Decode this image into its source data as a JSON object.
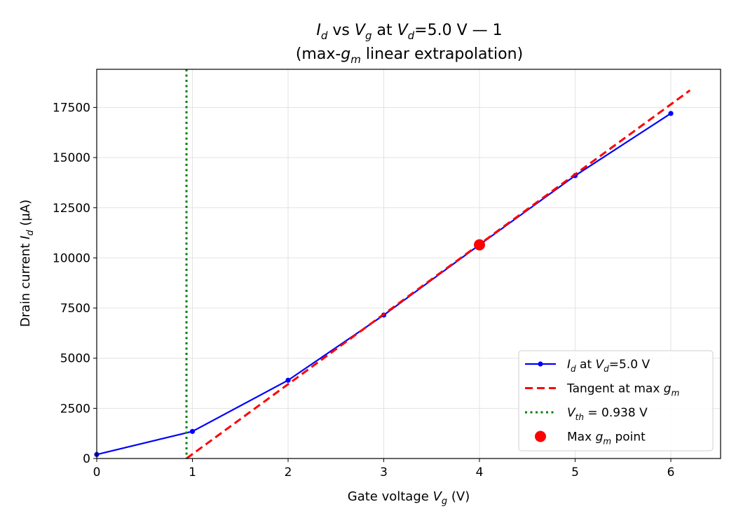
{
  "chart_data": {
    "type": "line",
    "title_line1": {
      "pre": "I",
      "sub1": "d",
      "mid": " vs ",
      "v": "V",
      "sub2": "g",
      "mid2": " at ",
      "v2": "V",
      "sub3": "d",
      "post": "=5.0 V — 1"
    },
    "title_line2": {
      "pre": "(max-",
      "g": "g",
      "sub": "m",
      "post": " linear extrapolation)"
    },
    "xlabel": {
      "pre": "Gate voltage ",
      "v": "V",
      "sub": "g",
      "post": " (V)"
    },
    "ylabel": {
      "pre": "Drain current ",
      "i": "I",
      "sub": "d",
      "post": " (µA)"
    },
    "xlim": [
      0,
      6.52
    ],
    "ylim": [
      0,
      19400
    ],
    "x_ticks": [
      0,
      1,
      2,
      3,
      4,
      5,
      6
    ],
    "x_tick_labels": [
      "0",
      "1",
      "2",
      "3",
      "4",
      "5",
      "6"
    ],
    "y_ticks": [
      0,
      2500,
      5000,
      7500,
      10000,
      12500,
      15000,
      17500
    ],
    "y_tick_labels": [
      "0",
      "2500",
      "5000",
      "7500",
      "10000",
      "12500",
      "15000",
      "17500"
    ],
    "grid": true,
    "legend_position": "lower-right",
    "series": [
      {
        "name": "I_d at V_d=5.0 V",
        "kind": "line-markers",
        "color": "#0000ff",
        "x": [
          0,
          1,
          2,
          3,
          4,
          5,
          6
        ],
        "y": [
          200,
          1350,
          3900,
          7150,
          10650,
          14100,
          17200
        ]
      },
      {
        "name": "Tangent at max g_m",
        "kind": "dashed",
        "color": "#ff0000",
        "x": [
          0.938,
          6.2
        ],
        "y": [
          0,
          18350
        ]
      },
      {
        "name": "V_th = 0.938 V",
        "kind": "dotted-vertical",
        "color": "#008000",
        "x": 0.938
      },
      {
        "name": "Max g_m point",
        "kind": "point",
        "color": "#ff0000",
        "x": [
          4
        ],
        "y": [
          10650
        ]
      }
    ],
    "legend": [
      {
        "kind": "line-markers",
        "color": "#0000ff",
        "parts": [
          [
            "I",
            "i"
          ],
          [
            "d",
            "sub"
          ],
          [
            " at ",
            "n"
          ],
          [
            "V",
            "i"
          ],
          [
            "d",
            "sub"
          ],
          [
            "=5.0 V",
            "n"
          ]
        ]
      },
      {
        "kind": "dashed",
        "color": "#ff0000",
        "parts": [
          [
            "Tangent at max ",
            "n"
          ],
          [
            "g",
            "i"
          ],
          [
            "m",
            "sub"
          ]
        ]
      },
      {
        "kind": "dotted",
        "color": "#008000",
        "parts": [
          [
            "V",
            "i"
          ],
          [
            "th",
            "sub"
          ],
          [
            " = 0.938 V",
            "n"
          ]
        ]
      },
      {
        "kind": "point",
        "color": "#ff0000",
        "parts": [
          [
            "Max ",
            "n"
          ],
          [
            "g",
            "i"
          ],
          [
            "m",
            "sub"
          ],
          [
            " point",
            "n"
          ]
        ]
      }
    ]
  }
}
